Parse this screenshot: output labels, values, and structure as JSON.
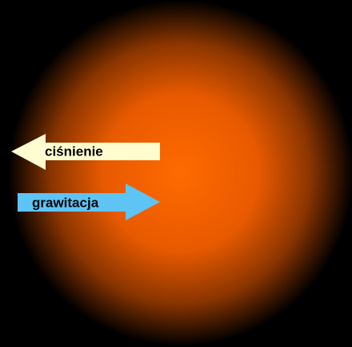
{
  "arrows": [
    {
      "label": "ciśnienie"
    },
    {
      "label": "grawitacja"
    }
  ]
}
